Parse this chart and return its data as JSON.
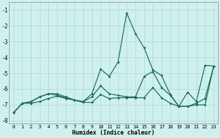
{
  "xlabel": "Humidex (Indice chaleur)",
  "bg_color": "#cff0ec",
  "grid_color": "#a8d8d4",
  "line_color": "#1a6b5e",
  "xlim": [
    -0.5,
    23.5
  ],
  "ylim": [
    -8.2,
    -0.5
  ],
  "xticks": [
    0,
    1,
    2,
    3,
    4,
    5,
    6,
    7,
    8,
    9,
    10,
    11,
    12,
    13,
    14,
    15,
    16,
    17,
    18,
    19,
    20,
    21,
    22,
    23
  ],
  "yticks": [
    -8,
    -7,
    -6,
    -5,
    -4,
    -3,
    -2,
    -1
  ],
  "series": [
    [
      -7.5,
      -6.9,
      -6.8,
      -6.5,
      -6.3,
      -6.3,
      -6.5,
      -6.7,
      -6.8,
      -6.3,
      -4.75,
      -5.2,
      -4.3,
      -1.2,
      -2.5,
      -3.4,
      -4.8,
      -5.15,
      -6.35,
      -7.1,
      -6.2,
      -6.8,
      -4.5,
      -4.55
    ],
    [
      -7.5,
      -6.9,
      -6.8,
      -6.5,
      -6.3,
      -6.4,
      -6.55,
      -6.7,
      -6.8,
      -6.5,
      -5.8,
      -6.3,
      -6.4,
      -6.5,
      -6.5,
      -5.2,
      -4.9,
      -5.9,
      -6.4,
      -7.1,
      -7.1,
      -6.9,
      -6.6,
      -4.55
    ],
    [
      -7.5,
      -6.9,
      -6.9,
      -6.8,
      -6.6,
      -6.45,
      -6.6,
      -6.7,
      -6.85,
      -6.85,
      -6.35,
      -6.6,
      -6.55,
      -6.55,
      -6.55,
      -6.55,
      -5.9,
      -6.55,
      -6.9,
      -7.1,
      -7.1,
      -7.0,
      -7.0,
      -4.55
    ]
  ]
}
